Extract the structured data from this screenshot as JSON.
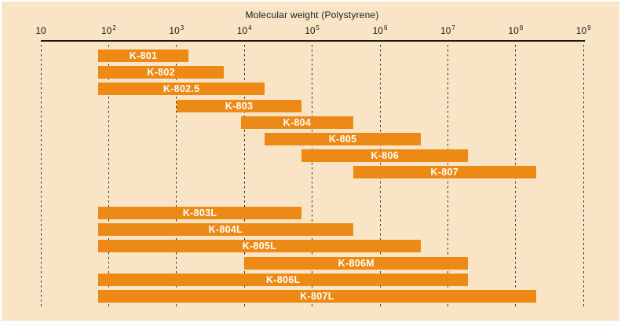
{
  "chart_data": {
    "type": "range-bar",
    "title": "Molecular weight (Polystyrene)",
    "x_axis": {
      "scale": "log10",
      "min": 10,
      "max": 1000000000,
      "gridlines": "dashed-vertical",
      "ticks": [
        {
          "value": 10,
          "base": "10",
          "sup": ""
        },
        {
          "value": 100,
          "base": "10",
          "sup": "2"
        },
        {
          "value": 1000,
          "base": "10",
          "sup": "3"
        },
        {
          "value": 10000,
          "base": "10",
          "sup": "4"
        },
        {
          "value": 100000,
          "base": "10",
          "sup": "5"
        },
        {
          "value": 1000000,
          "base": "10",
          "sup": "6"
        },
        {
          "value": 10000000,
          "base": "10",
          "sup": "7"
        },
        {
          "value": 100000000,
          "base": "10",
          "sup": "8"
        },
        {
          "value": 1000000000,
          "base": "10",
          "sup": "9"
        }
      ]
    },
    "groups": [
      {
        "name": "upper-group",
        "bars": [
          {
            "label": "K-801",
            "min": 70,
            "max": 1500
          },
          {
            "label": "K-802",
            "min": 70,
            "max": 5000
          },
          {
            "label": "K-802.5",
            "min": 70,
            "max": 20000
          },
          {
            "label": "K-803",
            "min": 1000,
            "max": 70000
          },
          {
            "label": "K-804",
            "min": 9000,
            "max": 400000
          },
          {
            "label": "K-805",
            "min": 20000,
            "max": 4000000
          },
          {
            "label": "K-806",
            "min": 70000,
            "max": 20000000
          },
          {
            "label": "K-807",
            "min": 400000,
            "max": 200000000
          }
        ]
      },
      {
        "name": "lower-group",
        "bars": [
          {
            "label": "K-803L",
            "min": 70,
            "max": 70000
          },
          {
            "label": "K-804L",
            "min": 70,
            "max": 400000
          },
          {
            "label": "K-805L",
            "min": 70,
            "max": 4000000
          },
          {
            "label": "K-806M",
            "min": 10000,
            "max": 20000000
          },
          {
            "label": "K-806L",
            "min": 70,
            "max": 20000000
          },
          {
            "label": "K-807L",
            "min": 70,
            "max": 200000000
          }
        ]
      }
    ],
    "colors": {
      "bar": "#EC8A15",
      "bar_label": "#FFFFFF",
      "background": "#F9E4C6",
      "axis": "#1A1A1A"
    }
  }
}
